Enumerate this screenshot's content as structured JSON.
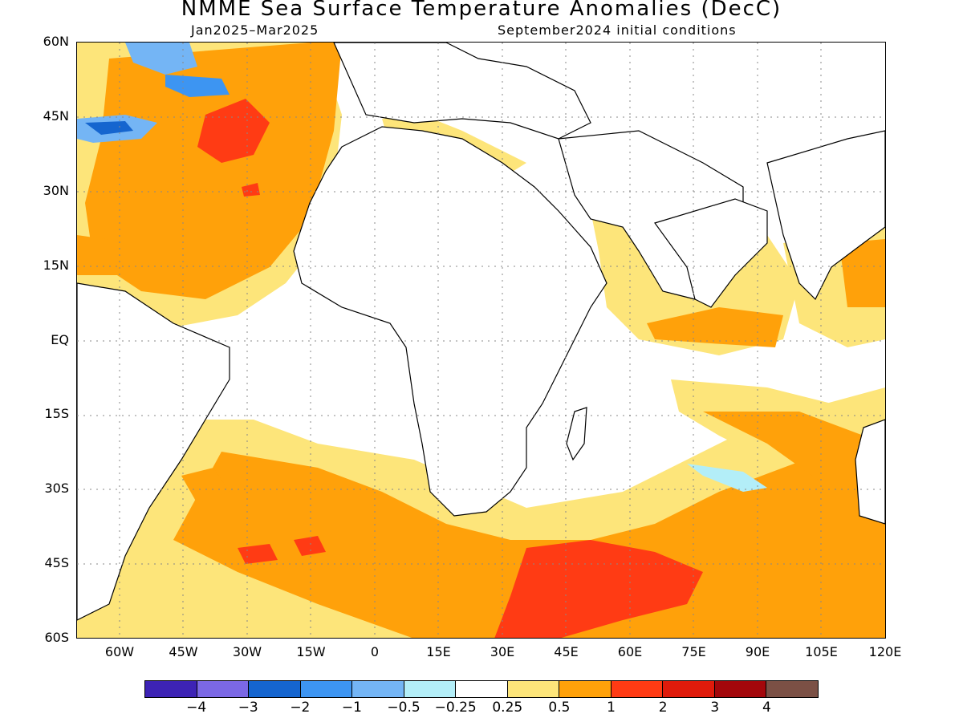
{
  "title": "NMME Sea Surface Temperature Anomalies (DecC)",
  "subtitle_left": "Jan2025–Mar2025",
  "subtitle_right": "September2024 initial conditions",
  "map_data": {
    "type": "filled-contour-map",
    "region": "Atlantic and Indian Ocean",
    "lon_range": [
      -70,
      120
    ],
    "lat_range": [
      -60,
      60
    ],
    "gridlines": true,
    "y_ticks": [
      {
        "lat": 60,
        "label": "60N"
      },
      {
        "lat": 45,
        "label": "45N"
      },
      {
        "lat": 30,
        "label": "30N"
      },
      {
        "lat": 15,
        "label": "15N"
      },
      {
        "lat": 0,
        "label": "EQ"
      },
      {
        "lat": -15,
        "label": "15S"
      },
      {
        "lat": -30,
        "label": "30S"
      },
      {
        "lat": -45,
        "label": "45S"
      },
      {
        "lat": -60,
        "label": "60S"
      }
    ],
    "x_ticks": [
      {
        "lon": -60,
        "label": "60W"
      },
      {
        "lon": -45,
        "label": "45W"
      },
      {
        "lon": -30,
        "label": "30W"
      },
      {
        "lon": -15,
        "label": "15W"
      },
      {
        "lon": 0,
        "label": "0"
      },
      {
        "lon": 15,
        "label": "15E"
      },
      {
        "lon": 30,
        "label": "30E"
      },
      {
        "lon": 45,
        "label": "45E"
      },
      {
        "lon": 60,
        "label": "60E"
      },
      {
        "lon": 75,
        "label": "75E"
      },
      {
        "lon": 90,
        "label": "90E"
      },
      {
        "lon": 105,
        "label": "105E"
      },
      {
        "lon": 120,
        "label": "120E"
      }
    ]
  },
  "colorbar": {
    "colors": [
      "#3d23b5",
      "#7b68e5",
      "#1565cf",
      "#3d95f2",
      "#74b5f5",
      "#b3eef8",
      "#ffffff",
      "#fde57a",
      "#ffa10a",
      "#ff3b14",
      "#e01b0b",
      "#a3070b",
      "#7b5045"
    ],
    "labels": [
      "−4",
      "−3",
      "−2",
      "−1",
      "−0.5",
      "−0.25",
      "0.25",
      "0.5",
      "1",
      "2",
      "3",
      "4"
    ]
  }
}
